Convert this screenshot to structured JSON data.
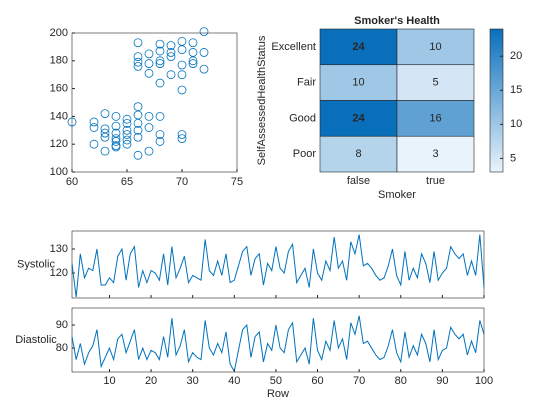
{
  "chart_data": [
    {
      "type": "scatter",
      "color": "#0072bd",
      "x": [
        60,
        62,
        62,
        63,
        63,
        63,
        63,
        64,
        64,
        64,
        64,
        64,
        65,
        65,
        65,
        65,
        66,
        66,
        66,
        66,
        67,
        67,
        68,
        68,
        70,
        70,
        63,
        64,
        65,
        66,
        67,
        62,
        64,
        65,
        66,
        68,
        66,
        66,
        66,
        67,
        67,
        68,
        68,
        68,
        69,
        69,
        69,
        70,
        70,
        70,
        71,
        71,
        71,
        72,
        72,
        72,
        68,
        67,
        69,
        70,
        71,
        66,
        68,
        70
      ],
      "y": [
        136,
        120,
        136,
        115,
        125,
        131,
        142,
        118,
        122,
        128,
        133,
        140,
        120,
        127,
        130,
        135,
        112,
        125,
        141,
        147,
        115,
        132,
        122,
        140,
        124,
        127,
        128,
        124,
        123,
        135,
        140,
        132,
        119,
        138,
        130,
        127,
        176,
        183,
        193,
        171,
        185,
        164,
        178,
        187,
        170,
        183,
        191,
        159,
        177,
        188,
        178,
        186,
        193,
        174,
        186,
        201,
        180,
        178,
        186,
        170,
        180,
        179,
        192,
        194
      ],
      "xlim": [
        60,
        75
      ],
      "xticks": [
        60,
        65,
        70,
        75
      ],
      "ylim": [
        100,
        200
      ],
      "yticks": [
        100,
        120,
        140,
        160,
        180,
        200
      ]
    },
    {
      "type": "heatmap",
      "title": "Smoker's Health",
      "xlabel": "Smoker",
      "ylabel": "SelfAssessedHealthStatus",
      "x_categories": [
        "false",
        "true"
      ],
      "y_categories": [
        "Excellent",
        "Fair",
        "Good",
        "Poor"
      ],
      "values": [
        [
          24,
          10
        ],
        [
          10,
          5
        ],
        [
          24,
          16
        ],
        [
          8,
          3
        ]
      ],
      "colormap": [
        "#e9f3fb",
        "#0a6fbb"
      ],
      "clim": [
        3,
        24
      ],
      "colorbar_ticks": [
        5,
        10,
        15,
        20
      ]
    },
    {
      "type": "stackedplot",
      "xlabel": "Row",
      "xlim": [
        1,
        100
      ],
      "xticks": [
        10,
        20,
        30,
        40,
        50,
        60,
        70,
        80,
        90,
        100
      ],
      "series": [
        {
          "name": "Systolic",
          "color": "#0072bd",
          "ylim": [
            109.6,
            137.5
          ],
          "yticks": [
            120,
            130
          ],
          "values": [
            124,
            110,
            128,
            118,
            122,
            121,
            130,
            115,
            115,
            118,
            116,
            127,
            130,
            117,
            128,
            131,
            114,
            121,
            116,
            121,
            120,
            117,
            128,
            115,
            131,
            118,
            122,
            127,
            116,
            119,
            118,
            117,
            134,
            121,
            119,
            125,
            119,
            128,
            116,
            117,
            123,
            129,
            131,
            119,
            126,
            128,
            115,
            124,
            121,
            131,
            122,
            120,
            129,
            132,
            116,
            119,
            122,
            114,
            130,
            120,
            117,
            125,
            121,
            135,
            122,
            125,
            117,
            133,
            128,
            136,
            123,
            124,
            122,
            119,
            117,
            118,
            123,
            130,
            119,
            115,
            129,
            117,
            122,
            118,
            128,
            124,
            116,
            129,
            117,
            120,
            122,
            131,
            128,
            126,
            128,
            119,
            125,
            119,
            136,
            114
          ]
        },
        {
          "name": "Diastolic",
          "color": "#0072bd",
          "ylim": [
            69.6,
            97.4
          ],
          "yticks": [
            80,
            90
          ],
          "values": [
            85,
            75,
            82,
            73,
            78,
            81,
            88,
            72,
            76,
            80,
            75,
            84,
            86,
            78,
            83,
            88,
            75,
            80,
            75,
            79,
            78,
            75,
            85,
            76,
            93,
            77,
            81,
            88,
            74,
            78,
            76,
            75,
            92,
            80,
            77,
            82,
            78,
            87,
            73,
            70,
            79,
            88,
            90,
            76,
            85,
            87,
            74,
            82,
            79,
            90,
            80,
            78,
            88,
            91,
            74,
            77,
            80,
            73,
            93,
            79,
            75,
            83,
            79,
            92,
            80,
            84,
            75,
            91,
            86,
            94,
            82,
            83,
            80,
            77,
            75,
            76,
            81,
            88,
            78,
            74,
            87,
            76,
            81,
            77,
            86,
            82,
            74,
            88,
            75,
            79,
            80,
            89,
            86,
            84,
            86,
            77,
            83,
            78,
            92,
            86
          ]
        }
      ]
    }
  ]
}
